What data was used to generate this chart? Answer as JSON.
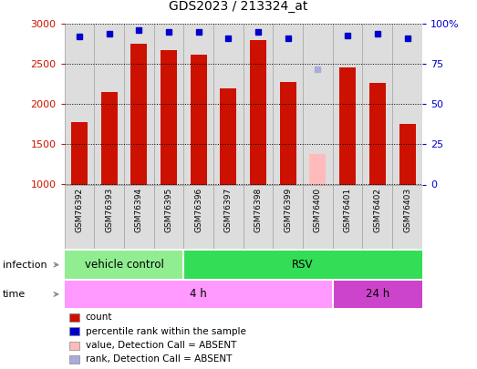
{
  "title": "GDS2023 / 213324_at",
  "samples": [
    "GSM76392",
    "GSM76393",
    "GSM76394",
    "GSM76395",
    "GSM76396",
    "GSM76397",
    "GSM76398",
    "GSM76399",
    "GSM76400",
    "GSM76401",
    "GSM76402",
    "GSM76403"
  ],
  "counts": [
    1780,
    2150,
    2750,
    2670,
    2620,
    2200,
    2800,
    2280,
    null,
    2460,
    2270,
    1760
  ],
  "counts_absent": [
    null,
    null,
    null,
    null,
    null,
    null,
    null,
    null,
    1380,
    null,
    null,
    null
  ],
  "ranks": [
    92,
    94,
    96,
    95,
    95,
    91,
    95,
    91,
    null,
    93,
    94,
    91
  ],
  "ranks_absent": [
    null,
    null,
    null,
    null,
    null,
    null,
    null,
    null,
    72,
    null,
    null,
    null
  ],
  "ylim_left": [
    1000,
    3000
  ],
  "ylim_right": [
    0,
    100
  ],
  "yticks_left": [
    1000,
    1500,
    2000,
    2500,
    3000
  ],
  "yticks_right": [
    0,
    25,
    50,
    75,
    100
  ],
  "infection_groups": [
    {
      "label": "vehicle control",
      "start": 0,
      "end": 3,
      "color": "#90EE90"
    },
    {
      "label": "RSV",
      "start": 4,
      "end": 11,
      "color": "#33DD55"
    }
  ],
  "time_groups": [
    {
      "label": "4 h",
      "start": 0,
      "end": 8,
      "color": "#FF99FF"
    },
    {
      "label": "24 h",
      "start": 9,
      "end": 11,
      "color": "#CC44CC"
    }
  ],
  "bar_color": "#CC1100",
  "bar_absent_color": "#FFBBBB",
  "rank_color": "#0000CC",
  "rank_absent_color": "#AAAADD",
  "bar_width": 0.55,
  "legend_items": [
    {
      "label": "count",
      "color": "#CC1100"
    },
    {
      "label": "percentile rank within the sample",
      "color": "#0000CC"
    },
    {
      "label": "value, Detection Call = ABSENT",
      "color": "#FFBBBB"
    },
    {
      "label": "rank, Detection Call = ABSENT",
      "color": "#AAAADD"
    }
  ],
  "background_color": "#FFFFFF",
  "tick_color_left": "#CC1100",
  "tick_color_right": "#0000CC",
  "col_bg_color": "#DDDDDD",
  "col_border_color": "#AAAAAA"
}
